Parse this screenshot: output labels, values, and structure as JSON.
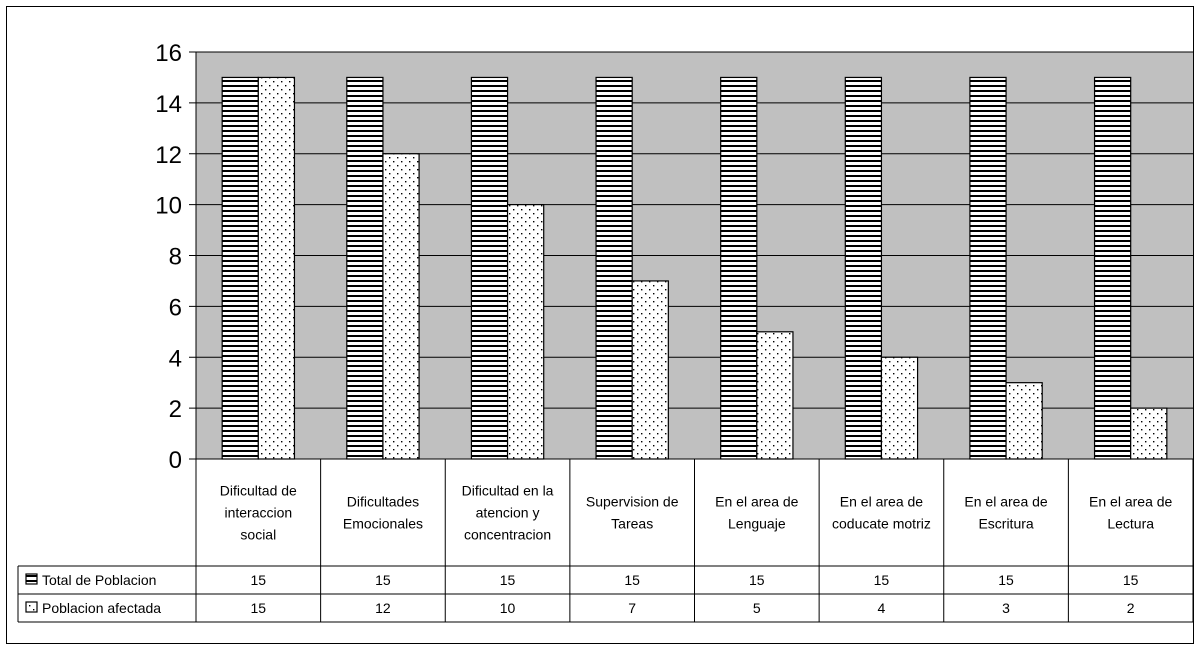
{
  "chart_data": {
    "type": "bar",
    "categories": [
      [
        "Dificultad de",
        "interaccion",
        "social"
      ],
      [
        "Dificultades",
        "Emocionales"
      ],
      [
        "Dificultad en la",
        "atencion y",
        "concentracion"
      ],
      [
        "Supervision de",
        "Tareas"
      ],
      [
        "En el area de",
        "Lenguaje"
      ],
      [
        "En el area de",
        "coducate motriz"
      ],
      [
        "En el area de",
        "Escritura"
      ],
      [
        "En el area de",
        "Lectura"
      ]
    ],
    "series": [
      {
        "name": "Total de Poblacion",
        "values": [
          15,
          15,
          15,
          15,
          15,
          15,
          15,
          15
        ],
        "pattern": "horizontal-stripes"
      },
      {
        "name": "Poblacion afectada",
        "values": [
          15,
          12,
          10,
          7,
          5,
          4,
          3,
          2
        ],
        "pattern": "dots"
      }
    ],
    "yticks": [
      "0",
      "2",
      "4",
      "6",
      "8",
      "10",
      "12",
      "14",
      "16"
    ],
    "ylim": [
      0,
      16
    ],
    "grid": true,
    "plot_background": "#c0c0c0",
    "data_table": true
  }
}
